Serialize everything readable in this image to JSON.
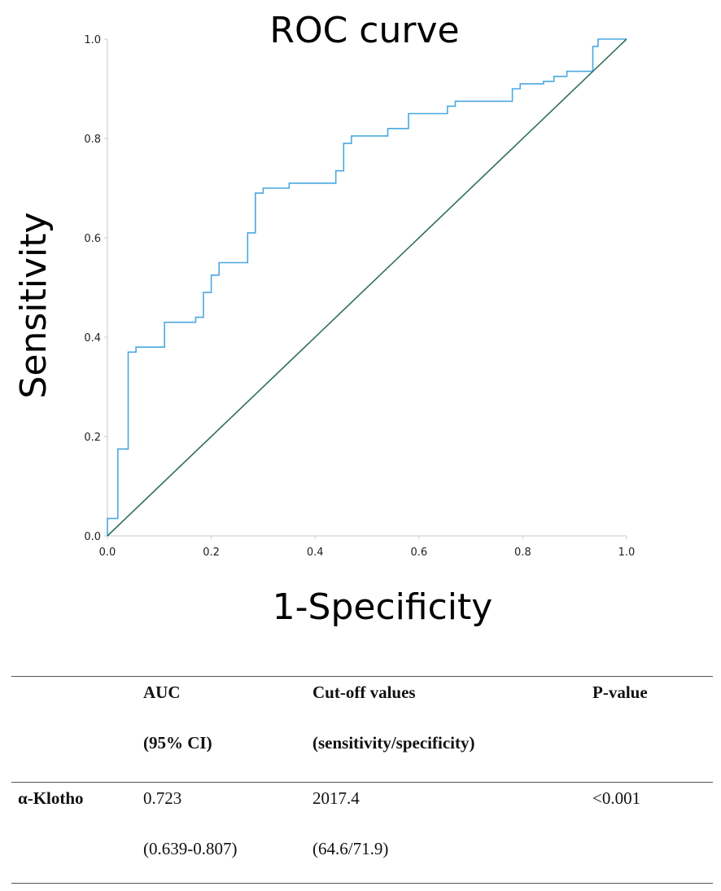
{
  "chart_data": {
    "type": "line",
    "title": "ROC curve",
    "xlabel": "1-Specificity",
    "ylabel": "Sensitivity",
    "xlim": [
      0.0,
      1.0
    ],
    "ylim": [
      0.0,
      1.0
    ],
    "xticks": [
      "0.0",
      "0.2",
      "0.4",
      "0.6",
      "0.8",
      "1.0"
    ],
    "yticks": [
      "0.0",
      "0.2",
      "0.4",
      "0.6",
      "0.8",
      "1.0"
    ],
    "grid": false,
    "series": [
      {
        "name": "α-Klotho",
        "color": "#4aa8e0",
        "points": [
          [
            0.0,
            0.0
          ],
          [
            0.0,
            0.035
          ],
          [
            0.02,
            0.035
          ],
          [
            0.02,
            0.175
          ],
          [
            0.04,
            0.175
          ],
          [
            0.04,
            0.37
          ],
          [
            0.055,
            0.37
          ],
          [
            0.055,
            0.38
          ],
          [
            0.11,
            0.38
          ],
          [
            0.11,
            0.43
          ],
          [
            0.17,
            0.43
          ],
          [
            0.17,
            0.44
          ],
          [
            0.185,
            0.44
          ],
          [
            0.185,
            0.49
          ],
          [
            0.2,
            0.49
          ],
          [
            0.2,
            0.525
          ],
          [
            0.215,
            0.525
          ],
          [
            0.215,
            0.55
          ],
          [
            0.27,
            0.55
          ],
          [
            0.27,
            0.61
          ],
          [
            0.285,
            0.61
          ],
          [
            0.285,
            0.69
          ],
          [
            0.3,
            0.69
          ],
          [
            0.3,
            0.7
          ],
          [
            0.35,
            0.7
          ],
          [
            0.35,
            0.71
          ],
          [
            0.44,
            0.71
          ],
          [
            0.44,
            0.735
          ],
          [
            0.455,
            0.735
          ],
          [
            0.455,
            0.79
          ],
          [
            0.47,
            0.79
          ],
          [
            0.47,
            0.805
          ],
          [
            0.54,
            0.805
          ],
          [
            0.54,
            0.82
          ],
          [
            0.58,
            0.82
          ],
          [
            0.58,
            0.85
          ],
          [
            0.655,
            0.85
          ],
          [
            0.655,
            0.865
          ],
          [
            0.67,
            0.865
          ],
          [
            0.67,
            0.875
          ],
          [
            0.78,
            0.875
          ],
          [
            0.78,
            0.9
          ],
          [
            0.795,
            0.9
          ],
          [
            0.795,
            0.91
          ],
          [
            0.84,
            0.91
          ],
          [
            0.84,
            0.915
          ],
          [
            0.86,
            0.915
          ],
          [
            0.86,
            0.925
          ],
          [
            0.885,
            0.925
          ],
          [
            0.885,
            0.935
          ],
          [
            0.935,
            0.935
          ],
          [
            0.935,
            0.985
          ],
          [
            0.945,
            0.985
          ],
          [
            0.945,
            1.0
          ],
          [
            1.0,
            1.0
          ]
        ]
      },
      {
        "name": "Reference line",
        "color": "#2f6f5f",
        "points": [
          [
            0.0,
            0.0
          ],
          [
            1.0,
            1.0
          ]
        ]
      }
    ]
  },
  "table": {
    "headers": [
      {
        "line1": "AUC",
        "line2": "(95% CI)"
      },
      {
        "line1": "Cut-off values",
        "line2": "(sensitivity/specificity)"
      },
      {
        "line1": "P-value",
        "line2": ""
      }
    ],
    "row": {
      "label": "α-Klotho",
      "auc": "0.723",
      "auc_ci": "(0.639-0.807)",
      "cutoff": "2017.4",
      "sens_spec": "(64.6/71.9)",
      "p_value": "<0.001"
    }
  }
}
